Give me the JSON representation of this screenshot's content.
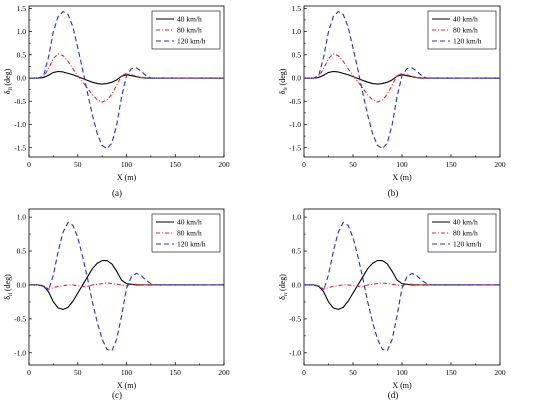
{
  "figure": {
    "panels": [
      {
        "id": "a",
        "caption": "(a)",
        "ylabel": "δ",
        "ysub": "fl",
        "yunit": "(deg)"
      },
      {
        "id": "b",
        "caption": "(b)",
        "ylabel": "δ",
        "ysub": "fr",
        "yunit": "(deg)"
      },
      {
        "id": "c",
        "caption": "(c)",
        "ylabel": "δ",
        "ysub": "rl",
        "yunit": "(deg)"
      },
      {
        "id": "d",
        "caption": "(d)",
        "ylabel": "δ",
        "ysub": "rr",
        "yunit": "(deg)"
      }
    ]
  },
  "chart_data": [
    {
      "type": "line",
      "panel": "a",
      "xlabel": "X (m)",
      "ylabel": "δfl (deg)",
      "xlim": [
        0,
        200
      ],
      "ylim": [
        -1.7,
        1.55
      ],
      "xticks": [
        0,
        50,
        100,
        150,
        200
      ],
      "yticks": [
        -1.5,
        -1.0,
        -0.5,
        0.0,
        0.5,
        1.0,
        1.5
      ],
      "ytick_labels": [
        "-1.5",
        "-1.0",
        "-0.5",
        "0.0",
        "0.5",
        "1.0",
        "1.5"
      ],
      "legend_position": "top-right",
      "series": [
        {
          "name": "40 km/h",
          "color": "#000000",
          "dash": "solid",
          "x": [
            0,
            10,
            15,
            20,
            25,
            30,
            35,
            40,
            45,
            50,
            55,
            60,
            65,
            70,
            75,
            80,
            85,
            90,
            95,
            100,
            105,
            110,
            115,
            120,
            200
          ],
          "y": [
            0,
            0,
            0.01,
            0.06,
            0.12,
            0.14,
            0.13,
            0.1,
            0.07,
            0.03,
            -0.01,
            -0.05,
            -0.09,
            -0.12,
            -0.13,
            -0.12,
            -0.09,
            -0.04,
            0.04,
            0.07,
            0.05,
            0.03,
            0.01,
            0,
            0
          ]
        },
        {
          "name": "80 km/h",
          "color": "#e8262a",
          "dash": "dashdot",
          "x": [
            0,
            10,
            15,
            20,
            25,
            30,
            35,
            40,
            45,
            50,
            55,
            60,
            65,
            70,
            75,
            80,
            85,
            90,
            95,
            100,
            105,
            110,
            115,
            120,
            200
          ],
          "y": [
            0,
            0,
            0.03,
            0.2,
            0.42,
            0.52,
            0.48,
            0.36,
            0.2,
            0.05,
            -0.08,
            -0.22,
            -0.36,
            -0.47,
            -0.52,
            -0.47,
            -0.35,
            -0.15,
            0.05,
            0.1,
            0.07,
            0.04,
            0.01,
            0,
            0
          ]
        },
        {
          "name": "120 km/h",
          "color": "#2432c9",
          "dash": "dash",
          "x": [
            0,
            10,
            15,
            20,
            25,
            30,
            35,
            40,
            45,
            50,
            55,
            60,
            65,
            70,
            75,
            80,
            85,
            90,
            95,
            100,
            105,
            110,
            115,
            120,
            125,
            200
          ],
          "y": [
            0,
            0,
            0.05,
            0.45,
            1.0,
            1.33,
            1.43,
            1.37,
            1.1,
            0.65,
            0.18,
            -0.32,
            -0.8,
            -1.2,
            -1.45,
            -1.52,
            -1.4,
            -1.0,
            -0.4,
            0.05,
            0.2,
            0.22,
            0.15,
            0.05,
            0,
            0
          ]
        }
      ]
    },
    {
      "type": "line",
      "panel": "b",
      "xlabel": "X (m)",
      "ylabel": "δfr (deg)",
      "xlim": [
        0,
        200
      ],
      "ylim": [
        -1.7,
        1.55
      ],
      "xticks": [
        0,
        50,
        100,
        150,
        200
      ],
      "yticks": [
        -1.5,
        -1.0,
        -0.5,
        0.0,
        0.5,
        1.0,
        1.5
      ],
      "ytick_labels": [
        "-1.5",
        "-1.0",
        "-0.5",
        "0.0",
        "0.5",
        "1.0",
        "1.5"
      ],
      "legend_position": "top-right",
      "series": [
        {
          "name": "40 km/h",
          "color": "#000000",
          "dash": "solid",
          "x": [
            0,
            10,
            15,
            20,
            25,
            30,
            35,
            40,
            45,
            50,
            55,
            60,
            65,
            70,
            75,
            80,
            85,
            90,
            95,
            100,
            105,
            110,
            115,
            120,
            200
          ],
          "y": [
            0,
            0,
            0.01,
            0.06,
            0.12,
            0.14,
            0.13,
            0.1,
            0.07,
            0.03,
            -0.01,
            -0.05,
            -0.09,
            -0.12,
            -0.13,
            -0.12,
            -0.09,
            -0.04,
            0.04,
            0.07,
            0.05,
            0.03,
            0.01,
            0,
            0
          ]
        },
        {
          "name": "80 km/h",
          "color": "#e8262a",
          "dash": "dashdot",
          "x": [
            0,
            10,
            15,
            20,
            25,
            30,
            35,
            40,
            45,
            50,
            55,
            60,
            65,
            70,
            75,
            80,
            85,
            90,
            95,
            100,
            105,
            110,
            115,
            120,
            200
          ],
          "y": [
            0,
            0,
            0.03,
            0.2,
            0.42,
            0.52,
            0.48,
            0.36,
            0.2,
            0.05,
            -0.08,
            -0.22,
            -0.36,
            -0.47,
            -0.52,
            -0.47,
            -0.35,
            -0.15,
            0.05,
            0.1,
            0.07,
            0.04,
            0.01,
            0,
            0
          ]
        },
        {
          "name": "120 km/h",
          "color": "#2432c9",
          "dash": "dash",
          "x": [
            0,
            10,
            15,
            20,
            25,
            30,
            35,
            40,
            45,
            50,
            55,
            60,
            65,
            70,
            75,
            80,
            85,
            90,
            95,
            100,
            105,
            110,
            115,
            120,
            125,
            200
          ],
          "y": [
            0,
            0,
            0.05,
            0.45,
            1.0,
            1.33,
            1.43,
            1.37,
            1.1,
            0.65,
            0.18,
            -0.32,
            -0.8,
            -1.2,
            -1.45,
            -1.52,
            -1.4,
            -1.0,
            -0.4,
            0.05,
            0.2,
            0.22,
            0.15,
            0.05,
            0,
            0
          ]
        }
      ]
    },
    {
      "type": "line",
      "panel": "c",
      "xlabel": "X (m)",
      "ylabel": "δrl (deg)",
      "xlim": [
        0,
        200
      ],
      "ylim": [
        -1.18,
        1.12
      ],
      "xticks": [
        0,
        50,
        100,
        150,
        200
      ],
      "yticks": [
        -1.0,
        -0.5,
        0.0,
        0.5,
        1.0
      ],
      "ytick_labels": [
        "-1.0",
        "-0.5",
        "0.0",
        "0.5",
        "1.0"
      ],
      "legend_position": "top-right",
      "series": [
        {
          "name": "40 km/h",
          "color": "#000000",
          "dash": "solid",
          "x": [
            0,
            10,
            15,
            20,
            25,
            30,
            35,
            40,
            45,
            50,
            55,
            60,
            65,
            70,
            75,
            80,
            85,
            90,
            95,
            100,
            105,
            110,
            200
          ],
          "y": [
            0,
            0,
            -0.02,
            -0.1,
            -0.25,
            -0.34,
            -0.36,
            -0.33,
            -0.24,
            -0.12,
            0.0,
            0.12,
            0.24,
            0.32,
            0.36,
            0.36,
            0.31,
            0.2,
            0.07,
            0.02,
            0.01,
            0,
            0
          ]
        },
        {
          "name": "80 km/h",
          "color": "#e8262a",
          "dash": "dashdot",
          "x": [
            0,
            10,
            15,
            20,
            25,
            30,
            35,
            40,
            45,
            50,
            55,
            60,
            65,
            70,
            75,
            80,
            85,
            90,
            95,
            100,
            105,
            110,
            115,
            120,
            200
          ],
          "y": [
            0,
            0,
            -0.01,
            -0.06,
            -0.04,
            -0.02,
            -0.01,
            0.0,
            0.0,
            -0.01,
            -0.02,
            -0.02,
            0.0,
            0.01,
            0.02,
            0.03,
            0.02,
            0.01,
            0.0,
            -0.01,
            0.01,
            0.01,
            0.0,
            0,
            0
          ]
        },
        {
          "name": "120 km/h",
          "color": "#2432c9",
          "dash": "dash",
          "x": [
            0,
            10,
            15,
            20,
            25,
            30,
            35,
            40,
            45,
            50,
            55,
            60,
            65,
            70,
            75,
            80,
            85,
            90,
            95,
            100,
            105,
            110,
            115,
            120,
            125,
            130,
            200
          ],
          "y": [
            0,
            0,
            -0.02,
            -0.08,
            0.15,
            0.5,
            0.78,
            0.92,
            0.88,
            0.7,
            0.42,
            0.1,
            -0.25,
            -0.55,
            -0.8,
            -0.95,
            -0.97,
            -0.8,
            -0.45,
            -0.05,
            0.12,
            0.17,
            0.14,
            0.07,
            0.02,
            0,
            0
          ]
        }
      ]
    },
    {
      "type": "line",
      "panel": "d",
      "xlabel": "X (m)",
      "ylabel": "δrr (deg)",
      "xlim": [
        0,
        200
      ],
      "ylim": [
        -1.18,
        1.12
      ],
      "xticks": [
        0,
        50,
        100,
        150,
        200
      ],
      "yticks": [
        -1.0,
        -0.5,
        0.0,
        0.5,
        1.0
      ],
      "ytick_labels": [
        "-1.0",
        "-0.5",
        "0.0",
        "0.5",
        "1.0"
      ],
      "legend_position": "top-right",
      "series": [
        {
          "name": "40 km/h",
          "color": "#000000",
          "dash": "solid",
          "x": [
            0,
            10,
            15,
            20,
            25,
            30,
            35,
            40,
            45,
            50,
            55,
            60,
            65,
            70,
            75,
            80,
            85,
            90,
            95,
            100,
            105,
            110,
            200
          ],
          "y": [
            0,
            0,
            -0.02,
            -0.1,
            -0.25,
            -0.34,
            -0.36,
            -0.33,
            -0.24,
            -0.12,
            0.0,
            0.12,
            0.24,
            0.32,
            0.36,
            0.36,
            0.31,
            0.2,
            0.07,
            0.02,
            0.01,
            0,
            0
          ]
        },
        {
          "name": "80 km/h",
          "color": "#e8262a",
          "dash": "dashdot",
          "x": [
            0,
            10,
            15,
            20,
            25,
            30,
            35,
            40,
            45,
            50,
            55,
            60,
            65,
            70,
            75,
            80,
            85,
            90,
            95,
            100,
            105,
            110,
            115,
            120,
            200
          ],
          "y": [
            0,
            0,
            -0.01,
            -0.06,
            -0.04,
            -0.02,
            -0.01,
            0.0,
            0.0,
            -0.01,
            -0.02,
            -0.02,
            0.0,
            0.01,
            0.02,
            0.03,
            0.02,
            0.01,
            0.0,
            -0.01,
            0.01,
            0.01,
            0.0,
            0,
            0
          ]
        },
        {
          "name": "120 km/h",
          "color": "#2432c9",
          "dash": "dash",
          "x": [
            0,
            10,
            15,
            20,
            25,
            30,
            35,
            40,
            45,
            50,
            55,
            60,
            65,
            70,
            75,
            80,
            85,
            90,
            95,
            100,
            105,
            110,
            115,
            120,
            125,
            130,
            200
          ],
          "y": [
            0,
            0,
            -0.02,
            -0.08,
            0.15,
            0.5,
            0.78,
            0.92,
            0.88,
            0.7,
            0.42,
            0.1,
            -0.25,
            -0.55,
            -0.8,
            -0.95,
            -0.97,
            -0.8,
            -0.45,
            -0.05,
            0.12,
            0.17,
            0.14,
            0.07,
            0.02,
            0,
            0
          ]
        }
      ]
    }
  ]
}
